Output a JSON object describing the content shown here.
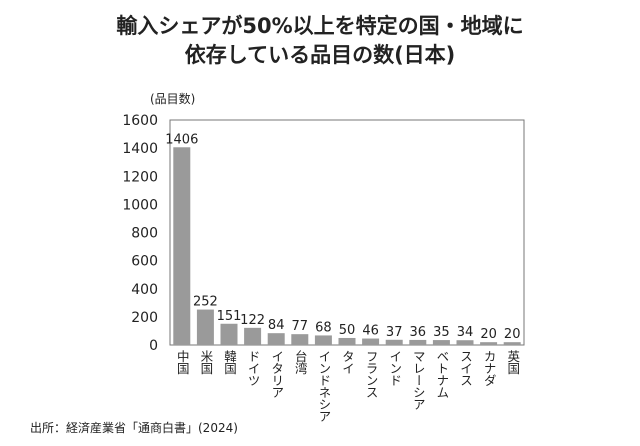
{
  "chart_data": {
    "type": "bar",
    "title_line1": "輸入シェアが50%以上を特定の国・地域に",
    "title_line2": "依存している品目の数(日本)",
    "ylabel": "(品目数)",
    "xlabel": "",
    "ylim": [
      0,
      1600
    ],
    "yticks": [
      "0",
      "200",
      "400",
      "600",
      "800",
      "1000",
      "1200",
      "1400",
      "1600"
    ],
    "categories": [
      "中国",
      "米国",
      "韓国",
      "ドイツ",
      "イタリア",
      "台湾",
      "インドネシア",
      "タイ",
      "フランス",
      "インド",
      "マレーシア",
      "ベトナム",
      "スイス",
      "カナダ",
      "英国"
    ],
    "values": [
      1406,
      252,
      151,
      122,
      84,
      77,
      68,
      50,
      46,
      37,
      36,
      35,
      34,
      20,
      20
    ],
    "bar_color": "#9a9a9a",
    "grid": false,
    "source": "出所：経済産業省「通商白書」(2024)"
  }
}
